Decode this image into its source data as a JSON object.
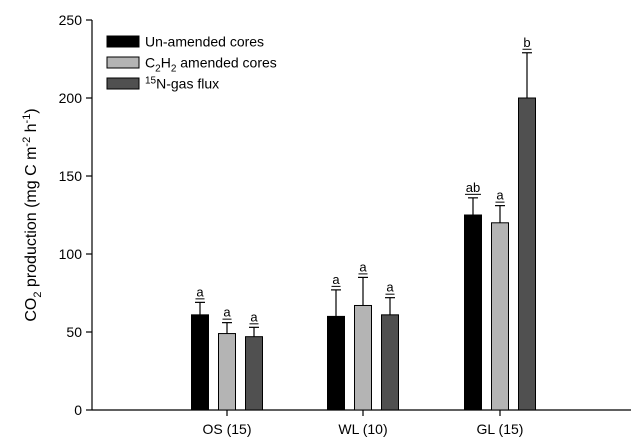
{
  "chart_data": {
    "type": "bar",
    "categories": [
      "OS (15)",
      "WL (10)",
      "GL (15)"
    ],
    "series": [
      {
        "name": "Un-amended cores",
        "color": "#000000",
        "values": [
          61,
          60,
          125
        ],
        "errors": [
          8,
          17,
          11
        ],
        "letters": [
          "a",
          "a",
          "ab"
        ]
      },
      {
        "name": "C2H2 amended cores",
        "color": "#b4b4b4",
        "values": [
          49,
          67,
          120
        ],
        "errors": [
          7,
          18,
          11
        ],
        "letters": [
          "a",
          "a",
          "a"
        ]
      },
      {
        "name": "15N-gas flux",
        "color": "#505050",
        "values": [
          47,
          61,
          200
        ],
        "errors": [
          6,
          11,
          29
        ],
        "letters": [
          "a",
          "a",
          "b"
        ]
      }
    ],
    "ylabel": "CO2 production (mg C m-2 h-1)",
    "xlabel": "",
    "ylim": [
      0,
      250
    ],
    "yticks": [
      0,
      50,
      100,
      150,
      200,
      250
    ],
    "grid": false,
    "legend_position": "top-left"
  }
}
